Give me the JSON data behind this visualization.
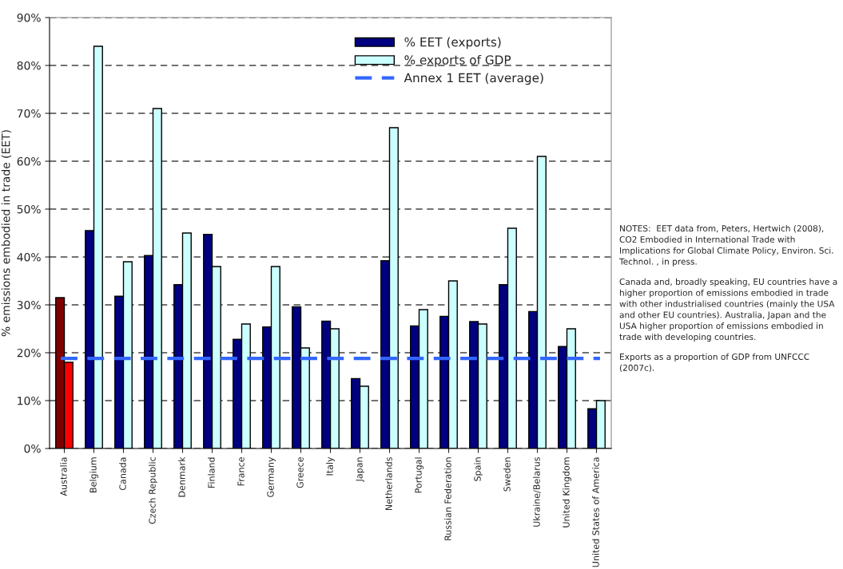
{
  "chart_data": {
    "type": "bar",
    "ylabel": "% emissions embodied in trade (EET)",
    "categories": [
      "Australia",
      "Belgium",
      "Canada",
      "Czech Republic",
      "Denmark",
      "Finland",
      "France",
      "Germany",
      "Greece",
      "Italy",
      "Japan",
      "Netherlands",
      "Portugal",
      "Russian Federation",
      "Spain",
      "Sweden",
      "Ukraine/Belarus",
      "United Kingdom",
      "United States of America"
    ],
    "series": [
      {
        "name": "% EET (exports)",
        "color": "#000080",
        "colors": [
          "#800000",
          "#000080",
          "#000080",
          "#000080",
          "#000080",
          "#000080",
          "#000080",
          "#000080",
          "#000080",
          "#000080",
          "#000080",
          "#000080",
          "#000080",
          "#000080",
          "#000080",
          "#000080",
          "#000080",
          "#000080",
          "#000080"
        ],
        "values": [
          31.5,
          45.5,
          31.8,
          40.3,
          34.2,
          44.7,
          22.8,
          25.4,
          29.6,
          26.6,
          14.6,
          39.2,
          25.6,
          27.6,
          26.5,
          34.2,
          28.6,
          21.3,
          8.3
        ]
      },
      {
        "name": "% exports of GDP",
        "color": "#ccffff",
        "colors": [
          "#ff0000",
          "#ccffff",
          "#ccffff",
          "#ccffff",
          "#ccffff",
          "#ccffff",
          "#ccffff",
          "#ccffff",
          "#ccffff",
          "#ccffff",
          "#ccffff",
          "#ccffff",
          "#ccffff",
          "#ccffff",
          "#ccffff",
          "#ccffff",
          "#ccffff",
          "#ccffff",
          "#ccffff"
        ],
        "values": [
          18,
          84,
          39,
          71,
          45,
          38,
          26,
          38,
          21,
          25,
          13,
          67,
          29,
          35,
          26,
          46,
          61,
          25,
          10
        ]
      }
    ],
    "ref_lines": [
      {
        "axis": "y",
        "value": 18.8,
        "label": "Annex 1 EET (average)",
        "color": "#3366ff",
        "line_style": "dashed"
      }
    ],
    "ylim": [
      0,
      90
    ],
    "yticks": [
      {
        "value": 0,
        "label": "0%"
      },
      {
        "value": 10,
        "label": "10%"
      },
      {
        "value": 20,
        "label": "20%"
      },
      {
        "value": 30,
        "label": "30%"
      },
      {
        "value": 40,
        "label": "40%"
      },
      {
        "value": 50,
        "label": "50%"
      },
      {
        "value": 60,
        "label": "60%"
      },
      {
        "value": 70,
        "label": "70%"
      },
      {
        "value": 80,
        "label": "80%"
      },
      {
        "value": 90,
        "label": "90%"
      }
    ],
    "grid": "y",
    "legend": "top right",
    "annotations": [
      "NOTES:  EET data from, Peters, Hertwich (2008), CO2 Embodied in International Trade with Implications for Global Climate Policy, Environ. Sci. Technol. , in press.",
      "Canada and, broadly speaking, EU countries have a higher proportion of emissions embodied in trade with other industrialised countries (mainly the USA and other EU countries). Australia, Japan and the USA higher proportion of emissions embodied in trade with developing countries.",
      "Exports as a proportion of GDP from UNFCCC (2007c)."
    ]
  }
}
